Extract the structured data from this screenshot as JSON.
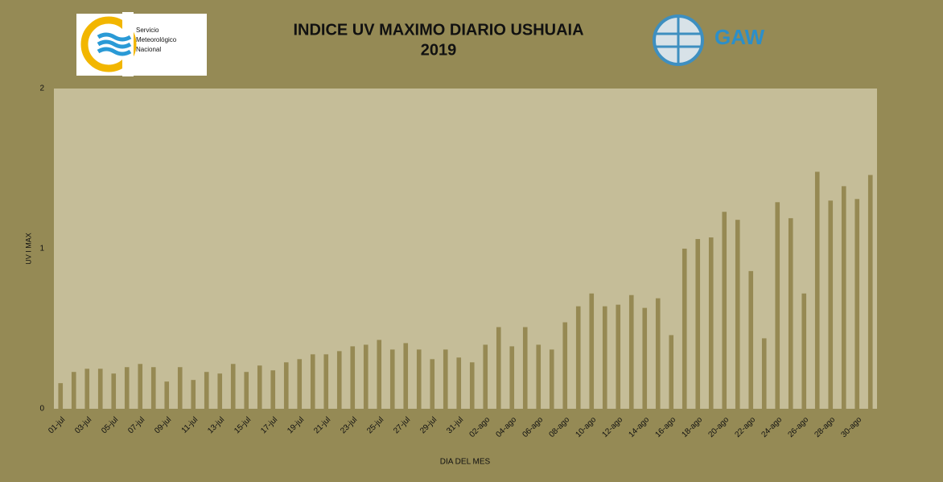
{
  "chart_data": {
    "type": "bar",
    "title": "INDICE UV MAXIMO DIARIO USHUAIA",
    "subtitle": "2019",
    "logo_left": [
      "Servicio",
      "Meteorológico",
      "Nacional"
    ],
    "logo_right": "GAW",
    "x_label": "DIA DEL MES",
    "y_label": "UV I MAX",
    "categories": [
      "01-jul",
      null,
      "03-jul",
      null,
      "05-jul",
      null,
      "07-jul",
      null,
      "09-jul",
      null,
      "11-jul",
      null,
      "13-jul",
      null,
      "15-jul",
      null,
      "17-jul",
      null,
      "19-jul",
      null,
      "21-jul",
      null,
      "23-jul",
      null,
      "25-jul",
      null,
      "27-jul",
      null,
      "29-jul",
      null,
      "31-jul",
      null,
      "02-ago",
      null,
      "04-ago",
      null,
      "06-ago",
      null,
      "08-ago",
      null,
      "10-ago",
      null,
      "12-ago",
      null,
      "14-ago",
      null,
      "16-ago",
      null,
      "18-ago",
      null,
      "20-ago",
      null,
      "22-ago",
      null,
      "24-ago",
      null,
      "26-ago",
      null,
      "28-ago",
      null,
      "30-ago",
      null
    ],
    "values": [
      0.16,
      0.23,
      0.25,
      0.25,
      0.22,
      0.26,
      0.28,
      0.26,
      0.17,
      0.26,
      0.18,
      0.23,
      0.22,
      0.28,
      0.23,
      0.27,
      0.24,
      0.29,
      0.31,
      0.34,
      0.34,
      0.36,
      0.39,
      0.4,
      0.43,
      0.37,
      0.41,
      0.37,
      0.31,
      0.37,
      0.32,
      0.29,
      0.4,
      0.51,
      0.39,
      0.51,
      0.4,
      0.37,
      0.54,
      0.64,
      0.72,
      0.64,
      0.65,
      0.71,
      0.63,
      0.69,
      0.46,
      1.0,
      1.06,
      1.07,
      1.23,
      1.18,
      0.86,
      0.44,
      1.29,
      1.19,
      0.72,
      1.48,
      1.3,
      1.39,
      1.31,
      1.46
    ],
    "color": "#968953",
    "ylim": [
      0,
      2
    ],
    "yticks": [
      0,
      1,
      2
    ],
    "grid": false
  }
}
